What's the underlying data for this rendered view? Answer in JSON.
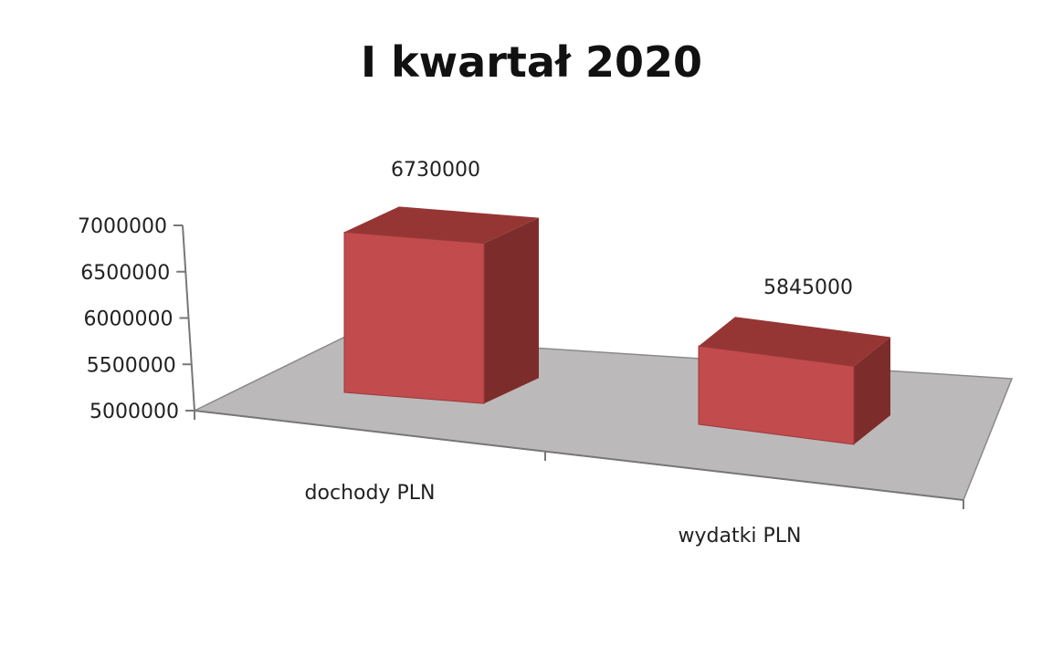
{
  "chart_data": {
    "type": "bar",
    "title": "I kwartał 2020",
    "categories": [
      "dochody PLN",
      "wydatki PLN"
    ],
    "values": [
      6730000,
      5845000
    ],
    "data_labels": [
      "6730000",
      "5845000"
    ],
    "ylim": [
      5000000,
      7000000
    ],
    "yticks": [
      "5000000",
      "5500000",
      "6000000",
      "6500000",
      "7000000"
    ],
    "style": "3d-column",
    "grid": false,
    "legend": "none",
    "colors": {
      "front": "#c24b4d",
      "top": "#963634",
      "side": "#7c2d2b",
      "floor": "#bcb9ba"
    }
  }
}
